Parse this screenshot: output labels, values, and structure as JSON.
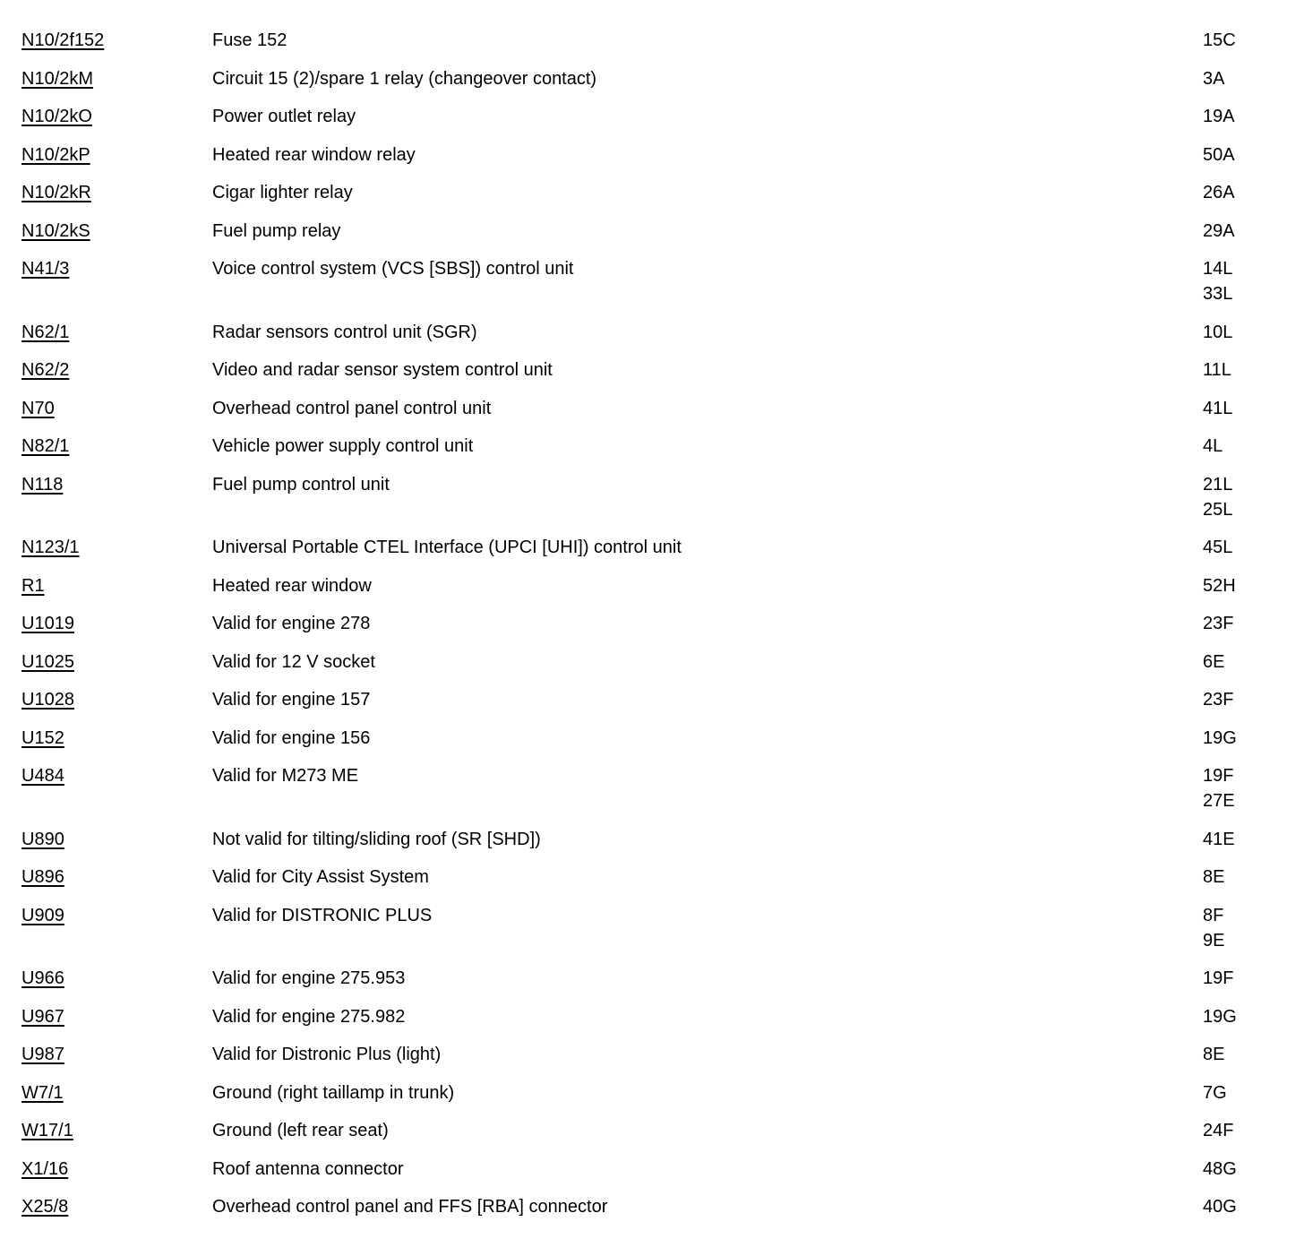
{
  "page": {
    "background": "#ffffff",
    "text_color": "#000000"
  },
  "legend_table": {
    "rows": [
      {
        "code": "N10/2f152",
        "description": "Fuse 152",
        "locations": [
          "15C"
        ]
      },
      {
        "code": "N10/2kM",
        "description": "Circuit 15 (2)/spare 1 relay (changeover contact)",
        "locations": [
          "3A"
        ]
      },
      {
        "code": "N10/2kO",
        "description": "Power outlet relay",
        "locations": [
          "19A"
        ]
      },
      {
        "code": "N10/2kP",
        "description": "Heated rear window relay",
        "locations": [
          "50A"
        ]
      },
      {
        "code": "N10/2kR",
        "description": "Cigar lighter relay",
        "locations": [
          "26A"
        ]
      },
      {
        "code": "N10/2kS",
        "description": "Fuel pump relay",
        "locations": [
          "29A"
        ]
      },
      {
        "code": "N41/3",
        "description": "Voice control system (VCS [SBS]) control unit",
        "locations": [
          "14L",
          "33L"
        ]
      },
      {
        "code": "N62/1",
        "description": "Radar sensors control unit (SGR)",
        "locations": [
          "10L"
        ]
      },
      {
        "code": "N62/2",
        "description": "Video and radar sensor system control unit",
        "locations": [
          "11L"
        ]
      },
      {
        "code": "N70",
        "description": "Overhead control panel control unit",
        "locations": [
          "41L"
        ]
      },
      {
        "code": "N82/1",
        "description": "Vehicle power supply control unit",
        "locations": [
          "4L"
        ]
      },
      {
        "code": "N118",
        "description": "Fuel pump control unit",
        "locations": [
          "21L",
          "25L"
        ]
      },
      {
        "code": "N123/1",
        "description": "Universal Portable CTEL Interface (UPCI [UHI]) control unit",
        "locations": [
          "45L"
        ]
      },
      {
        "code": "R1",
        "description": "Heated rear window",
        "locations": [
          "52H"
        ]
      },
      {
        "code": "U1019",
        "description": "Valid for engine 278",
        "locations": [
          "23F"
        ]
      },
      {
        "code": "U1025",
        "description": "Valid for 12 V socket",
        "locations": [
          "6E"
        ]
      },
      {
        "code": "U1028",
        "description": "Valid for engine 157",
        "locations": [
          "23F"
        ]
      },
      {
        "code": "U152",
        "description": "Valid for engine 156",
        "locations": [
          "19G"
        ]
      },
      {
        "code": "U484",
        "description": "Valid for M273 ME",
        "locations": [
          "19F",
          "27E"
        ]
      },
      {
        "code": "U890",
        "description": "Not valid for tilting/sliding roof (SR [SHD])",
        "locations": [
          "41E"
        ]
      },
      {
        "code": "U896",
        "description": "Valid for City Assist System",
        "locations": [
          "8E"
        ]
      },
      {
        "code": "U909",
        "description": "Valid for DISTRONIC PLUS",
        "locations": [
          "8F",
          "9E"
        ]
      },
      {
        "code": "U966",
        "description": "Valid for engine 275.953",
        "locations": [
          "19F"
        ]
      },
      {
        "code": "U967",
        "description": "Valid for engine 275.982",
        "locations": [
          "19G"
        ]
      },
      {
        "code": "U987",
        "description": "Valid for Distronic Plus (light)",
        "locations": [
          "8E"
        ]
      },
      {
        "code": "W7/1",
        "description": "Ground (right taillamp in trunk)",
        "locations": [
          "7G"
        ]
      },
      {
        "code": "W17/1",
        "description": "Ground (left rear seat)",
        "locations": [
          "24F"
        ]
      },
      {
        "code": "X1/16",
        "description": "Roof antenna connector",
        "locations": [
          "48G"
        ]
      },
      {
        "code": "X25/8",
        "description": "Overhead control panel and FFS [RBA] connector",
        "locations": [
          "40G"
        ]
      }
    ]
  }
}
